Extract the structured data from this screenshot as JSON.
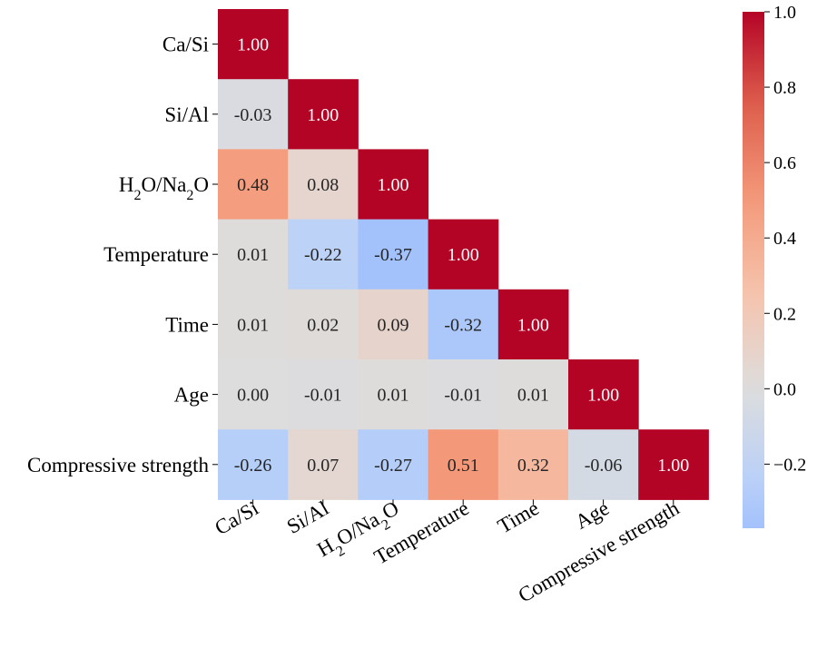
{
  "chart_data": {
    "type": "heatmap",
    "variables": [
      "Ca/Si",
      "Si/Al",
      "H2O/Na2O",
      "Temperature",
      "Time",
      "Age",
      "Compressive strength"
    ],
    "matrix": [
      [
        1.0
      ],
      [
        -0.03,
        1.0
      ],
      [
        0.48,
        0.08,
        1.0
      ],
      [
        0.01,
        -0.22,
        -0.37,
        1.0
      ],
      [
        0.01,
        0.02,
        0.09,
        -0.32,
        1.0
      ],
      [
        0.0,
        -0.01,
        0.01,
        -0.01,
        0.01,
        1.0
      ],
      [
        -0.26,
        0.07,
        -0.27,
        0.51,
        0.32,
        -0.06,
        1.0
      ]
    ],
    "value_format": "0.00",
    "mask": "upper-triangle",
    "colormap": "coolwarm",
    "colorbar": {
      "range": [
        -0.37,
        1.0
      ],
      "ticks": [
        -0.2,
        0.0,
        0.2,
        0.4,
        0.6,
        0.8,
        1.0
      ],
      "tick_labels": [
        "−0.2",
        "0.0",
        "0.2",
        "0.4",
        "0.6",
        "0.8",
        "1.0"
      ]
    }
  }
}
